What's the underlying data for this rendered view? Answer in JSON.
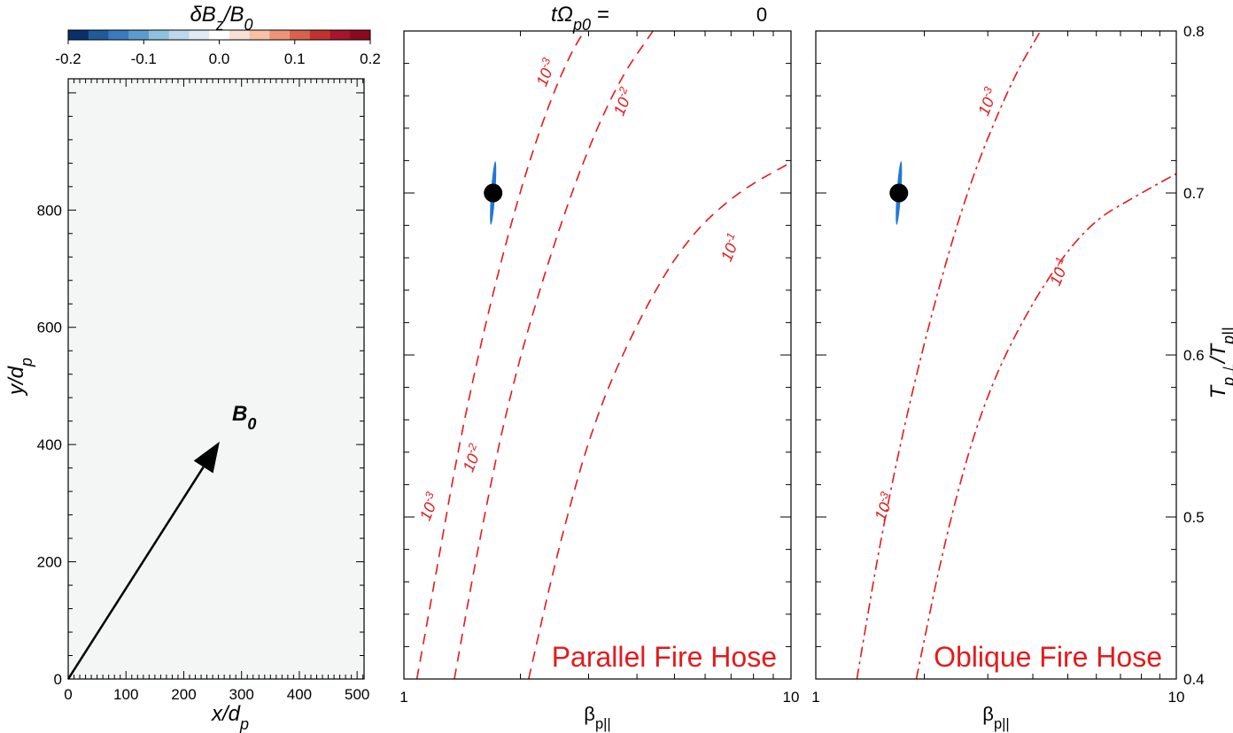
{
  "colorbar": {
    "label": "δB_z/B_0",
    "ticks": [
      "-0.2",
      "-0.1",
      "0.0",
      "0.1",
      "0.2"
    ],
    "range": [
      -0.2,
      0.2
    ],
    "colors": [
      "#08306b",
      "#1f5a99",
      "#3a7bbf",
      "#5b9ccf",
      "#8ec0df",
      "#bcd8eb",
      "#dfeaf3",
      "#ffffff",
      "#f9e0d4",
      "#f7c1a4",
      "#ec9575",
      "#d9624d",
      "#c0332f",
      "#a5162a",
      "#8b0a1f"
    ]
  },
  "header": {
    "time_label": "tΩ_p0 =",
    "time_value": "0"
  },
  "left_panel": {
    "xlabel": "x/d_p",
    "ylabel": "y/d_p",
    "x_ticks": [
      "0",
      "100",
      "200",
      "300",
      "400",
      "500"
    ],
    "y_ticks": [
      "0",
      "200",
      "400",
      "600",
      "800"
    ],
    "xlim": [
      0,
      512
    ],
    "ylim": [
      0,
      1024
    ],
    "field_value": 0.0,
    "arrow_label": "B_0",
    "arrow_from": [
      0,
      0
    ],
    "arrow_to": [
      262,
      405
    ]
  },
  "chart_data": [
    {
      "type": "line",
      "title": "Parallel Fire Hose",
      "xlabel": "β_p||",
      "x_scale": "log",
      "xlim": [
        1,
        10
      ],
      "ylim": [
        0.4,
        0.8
      ],
      "x_ticks": [
        "1",
        "10"
      ],
      "line_style": "dashed",
      "series": [
        {
          "contour": "10^-3",
          "points": [
            [
              1.08,
              0.4
            ],
            [
              1.2,
              0.46
            ],
            [
              1.4,
              0.55
            ],
            [
              1.7,
              0.64
            ],
            [
              2.1,
              0.72
            ],
            [
              2.6,
              0.78
            ],
            [
              3.1,
              0.81
            ]
          ]
        },
        {
          "contour": "10^-2",
          "points": [
            [
              1.35,
              0.4
            ],
            [
              1.55,
              0.48
            ],
            [
              1.85,
              0.57
            ],
            [
              2.3,
              0.65
            ],
            [
              2.9,
              0.72
            ],
            [
              3.6,
              0.77
            ],
            [
              4.4,
              0.8
            ]
          ]
        },
        {
          "contour": "10^-1",
          "points": [
            [
              2.1,
              0.4
            ],
            [
              2.5,
              0.48
            ],
            [
              3.1,
              0.56
            ],
            [
              4.0,
              0.62
            ],
            [
              5.3,
              0.67
            ],
            [
              7.2,
              0.7
            ],
            [
              10.2,
              0.72
            ]
          ]
        }
      ],
      "contour_labels": [
        {
          "text": "10^-3",
          "x": 2.4,
          "y": 0.773
        },
        {
          "text": "10^-2",
          "x": 3.8,
          "y": 0.755
        },
        {
          "text": "10^-1",
          "x": 7.2,
          "y": 0.665
        },
        {
          "text": "10^-3",
          "x": 1.2,
          "y": 0.505
        },
        {
          "text": "10^-2",
          "x": 1.55,
          "y": 0.535
        }
      ],
      "marker": {
        "x": 1.7,
        "y": 0.7
      }
    },
    {
      "type": "line",
      "title": "Oblique Fire Hose",
      "xlabel": "β_p||",
      "ylabel": "T_p⊥/T_p||",
      "x_scale": "log",
      "xlim": [
        1,
        10
      ],
      "ylim": [
        0.4,
        0.8
      ],
      "x_ticks": [
        "1",
        "10"
      ],
      "y_ticks": [
        "0.4",
        "0.5",
        "0.6",
        "0.7",
        "0.8"
      ],
      "line_style": "dash-dot",
      "series": [
        {
          "contour": "10^-3",
          "points": [
            [
              1.3,
              0.4
            ],
            [
              1.55,
              0.5
            ],
            [
              1.95,
              0.6
            ],
            [
              2.6,
              0.7
            ],
            [
              3.5,
              0.77
            ],
            [
              4.2,
              0.8
            ]
          ]
        },
        {
          "contour": "10^-1",
          "points": [
            [
              1.9,
              0.4
            ],
            [
              2.3,
              0.49
            ],
            [
              2.9,
              0.57
            ],
            [
              3.9,
              0.63
            ],
            [
              5.6,
              0.68
            ],
            [
              8.0,
              0.7
            ],
            [
              10.2,
              0.713
            ]
          ]
        }
      ],
      "contour_labels": [
        {
          "text": "10^-3",
          "x": 3.1,
          "y": 0.755
        },
        {
          "text": "10^-1",
          "x": 4.9,
          "y": 0.65
        },
        {
          "text": "10^-3",
          "x": 1.6,
          "y": 0.505
        }
      ],
      "marker": {
        "x": 1.7,
        "y": 0.7
      }
    }
  ]
}
